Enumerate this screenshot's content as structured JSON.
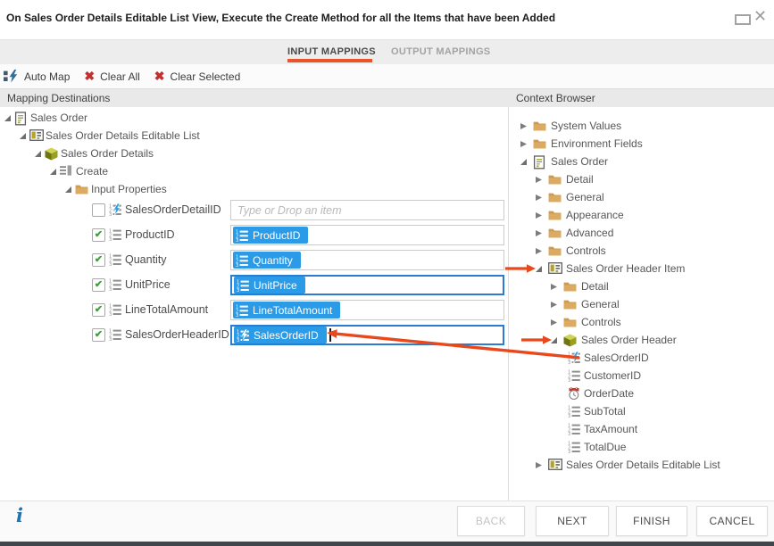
{
  "window": {
    "title": "On Sales Order Details Editable List View, Execute the Create Method for all the Items that have been Added",
    "maximize_icon": "maximize-icon",
    "close_glyph": "✕"
  },
  "tabs": {
    "items": [
      {
        "label": "INPUT MAPPINGS",
        "active": true
      },
      {
        "label": "OUTPUT MAPPINGS",
        "active": false
      }
    ]
  },
  "toolbar": {
    "items": [
      {
        "label": "Auto Map",
        "icon": "automap-icon"
      },
      {
        "label": "Clear All",
        "icon": "clear-all-icon",
        "glyph": "✖"
      },
      {
        "label": "Clear Selected",
        "icon": "clear-selected-icon",
        "glyph": "✖"
      }
    ]
  },
  "left_panel": {
    "header": "Mapping Destinations",
    "tree": [
      {
        "label": "Sales Order",
        "icon": "form-icon",
        "level": 0,
        "state": "expanded"
      },
      {
        "label": "Sales Order Details Editable List",
        "icon": "view-icon",
        "level": 1,
        "state": "expanded"
      },
      {
        "label": "Sales Order Details",
        "icon": "smartobject-icon",
        "level": 2,
        "state": "expanded"
      },
      {
        "label": "Create",
        "icon": "method-icon",
        "level": 3,
        "state": "expanded"
      },
      {
        "label": "Input Properties",
        "icon": "folder-icon",
        "level": 4,
        "state": "expanded"
      }
    ],
    "mappings": [
      {
        "label": "SalesOrderDetailID",
        "checked": false,
        "icon": "prop-autonumber-icon",
        "field": {
          "placeholder": "Type or Drop an item",
          "focused": false
        }
      },
      {
        "label": "ProductID",
        "checked": true,
        "icon": "prop-list-icon",
        "field": {
          "chip": {
            "label": "ProductID",
            "icon": "prop-list-icon"
          },
          "focused": false
        }
      },
      {
        "label": "Quantity",
        "checked": true,
        "icon": "prop-list-icon",
        "field": {
          "chip": {
            "label": "Quantity",
            "icon": "prop-list-icon"
          },
          "focused": false
        }
      },
      {
        "label": "UnitPrice",
        "checked": true,
        "icon": "prop-list-icon",
        "field": {
          "chip": {
            "label": "UnitPrice",
            "icon": "prop-list-icon"
          },
          "focused": true
        }
      },
      {
        "label": "LineTotalAmount",
        "checked": true,
        "icon": "prop-list-icon",
        "field": {
          "chip": {
            "label": "LineTotalAmount",
            "icon": "prop-list-icon"
          },
          "focused": false
        }
      },
      {
        "label": "SalesOrderHeaderID",
        "checked": true,
        "icon": "prop-list-icon",
        "field": {
          "chip": {
            "label": "SalesOrderID",
            "icon": "prop-autonumber-icon"
          },
          "focused": true,
          "caret": true
        }
      }
    ],
    "check_glyph": "✔"
  },
  "right_panel": {
    "header": "Context Browser",
    "tree": [
      {
        "label": "System Values",
        "icon": "folder-icon",
        "level": 0,
        "state": "collapsed"
      },
      {
        "label": "Environment Fields",
        "icon": "folder-icon",
        "level": 0,
        "state": "collapsed"
      },
      {
        "label": "Sales Order",
        "icon": "form-icon",
        "level": 0,
        "state": "expanded"
      },
      {
        "label": "Detail",
        "icon": "folder-icon",
        "level": 1,
        "state": "collapsed"
      },
      {
        "label": "General",
        "icon": "folder-icon",
        "level": 1,
        "state": "collapsed"
      },
      {
        "label": "Appearance",
        "icon": "folder-icon",
        "level": 1,
        "state": "collapsed"
      },
      {
        "label": "Advanced",
        "icon": "folder-icon",
        "level": 1,
        "state": "collapsed"
      },
      {
        "label": "Controls",
        "icon": "folder-icon",
        "level": 1,
        "state": "collapsed"
      },
      {
        "label": "Sales Order Header Item",
        "icon": "view-icon",
        "level": 1,
        "state": "expanded",
        "pointed": true
      },
      {
        "label": "Detail",
        "icon": "folder-icon",
        "level": 2,
        "state": "collapsed"
      },
      {
        "label": "General",
        "icon": "folder-icon",
        "level": 2,
        "state": "collapsed"
      },
      {
        "label": "Controls",
        "icon": "folder-icon",
        "level": 2,
        "state": "collapsed"
      },
      {
        "label": "Sales Order Header",
        "icon": "smartobject-icon",
        "level": 2,
        "state": "expanded",
        "pointed": true
      },
      {
        "label": "SalesOrderID",
        "icon": "prop-autonumber-icon",
        "level": 3,
        "state": "leaf",
        "pointed": true
      },
      {
        "label": "CustomerID",
        "icon": "prop-list-icon",
        "level": 3,
        "state": "leaf"
      },
      {
        "label": "OrderDate",
        "icon": "prop-date-icon",
        "level": 3,
        "state": "leaf"
      },
      {
        "label": "SubTotal",
        "icon": "prop-list-icon",
        "level": 3,
        "state": "leaf"
      },
      {
        "label": "TaxAmount",
        "icon": "prop-list-icon",
        "level": 3,
        "state": "leaf"
      },
      {
        "label": "TotalDue",
        "icon": "prop-list-icon",
        "level": 3,
        "state": "leaf"
      },
      {
        "label": "Sales Order Details Editable List",
        "icon": "view-icon",
        "level": 1,
        "state": "collapsed"
      }
    ]
  },
  "footer": {
    "info_glyph": "i",
    "buttons": [
      {
        "label": "BACK",
        "disabled": true
      },
      {
        "label": "NEXT",
        "disabled": false
      },
      {
        "label": "FINISH",
        "disabled": false
      },
      {
        "label": "CANCEL",
        "disabled": false
      }
    ]
  },
  "colors": {
    "chip_blue": "#2b9be8",
    "focus_border": "#2a7bd2",
    "arrow_red": "#e8481c",
    "tab_underline": "#e8542c",
    "check_green": "#3aa23a",
    "clear_red": "#bf3030",
    "accent_bolt": "#2e9fe8"
  }
}
